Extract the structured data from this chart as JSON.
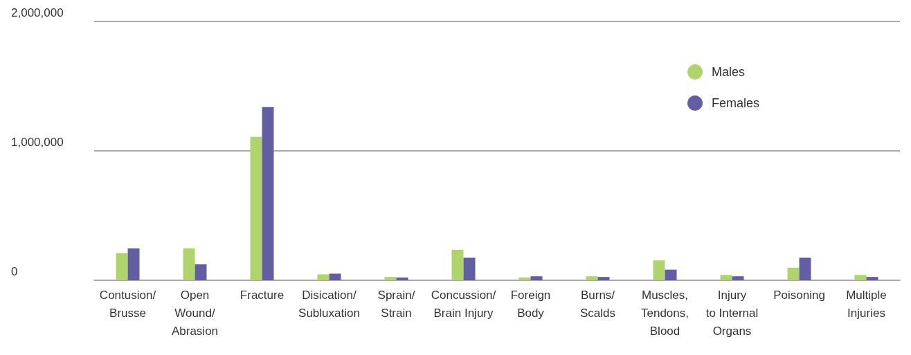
{
  "chart_data": {
    "type": "bar",
    "categories": [
      "Contusion/\nBrusse",
      "Open\nWound/\nAbrasion",
      "Fracture",
      "Disication/\nSubluxation",
      "Sprain/\nStrain",
      "Concussion/\nBrain Injury",
      "Foreign\nBody",
      "Burns/\nScalds",
      "Muscles,\nTendons,\nBlood",
      "Injury\nto Internal\nOrgans",
      "Poisoning",
      "Multiple\nInjuries"
    ],
    "series": [
      {
        "name": "Males",
        "color": "#b0d46c",
        "values": [
          210000,
          246000,
          1108000,
          46000,
          26000,
          236000,
          21000,
          31000,
          154000,
          41000,
          97000,
          41000
        ]
      },
      {
        "name": "Females",
        "color": "#635ea4",
        "values": [
          246000,
          123000,
          1338000,
          51000,
          21000,
          174000,
          31000,
          26000,
          82000,
          31000,
          174000,
          26000
        ]
      }
    ],
    "ylim": [
      0,
      2000000
    ],
    "yticks": [
      0,
      {
        "value": 1000000,
        "label": "1,000,000"
      },
      {
        "value": 2000000,
        "label": "2,000,000"
      }
    ],
    "grid": "y",
    "legend": "top right",
    "marker": "circle"
  }
}
